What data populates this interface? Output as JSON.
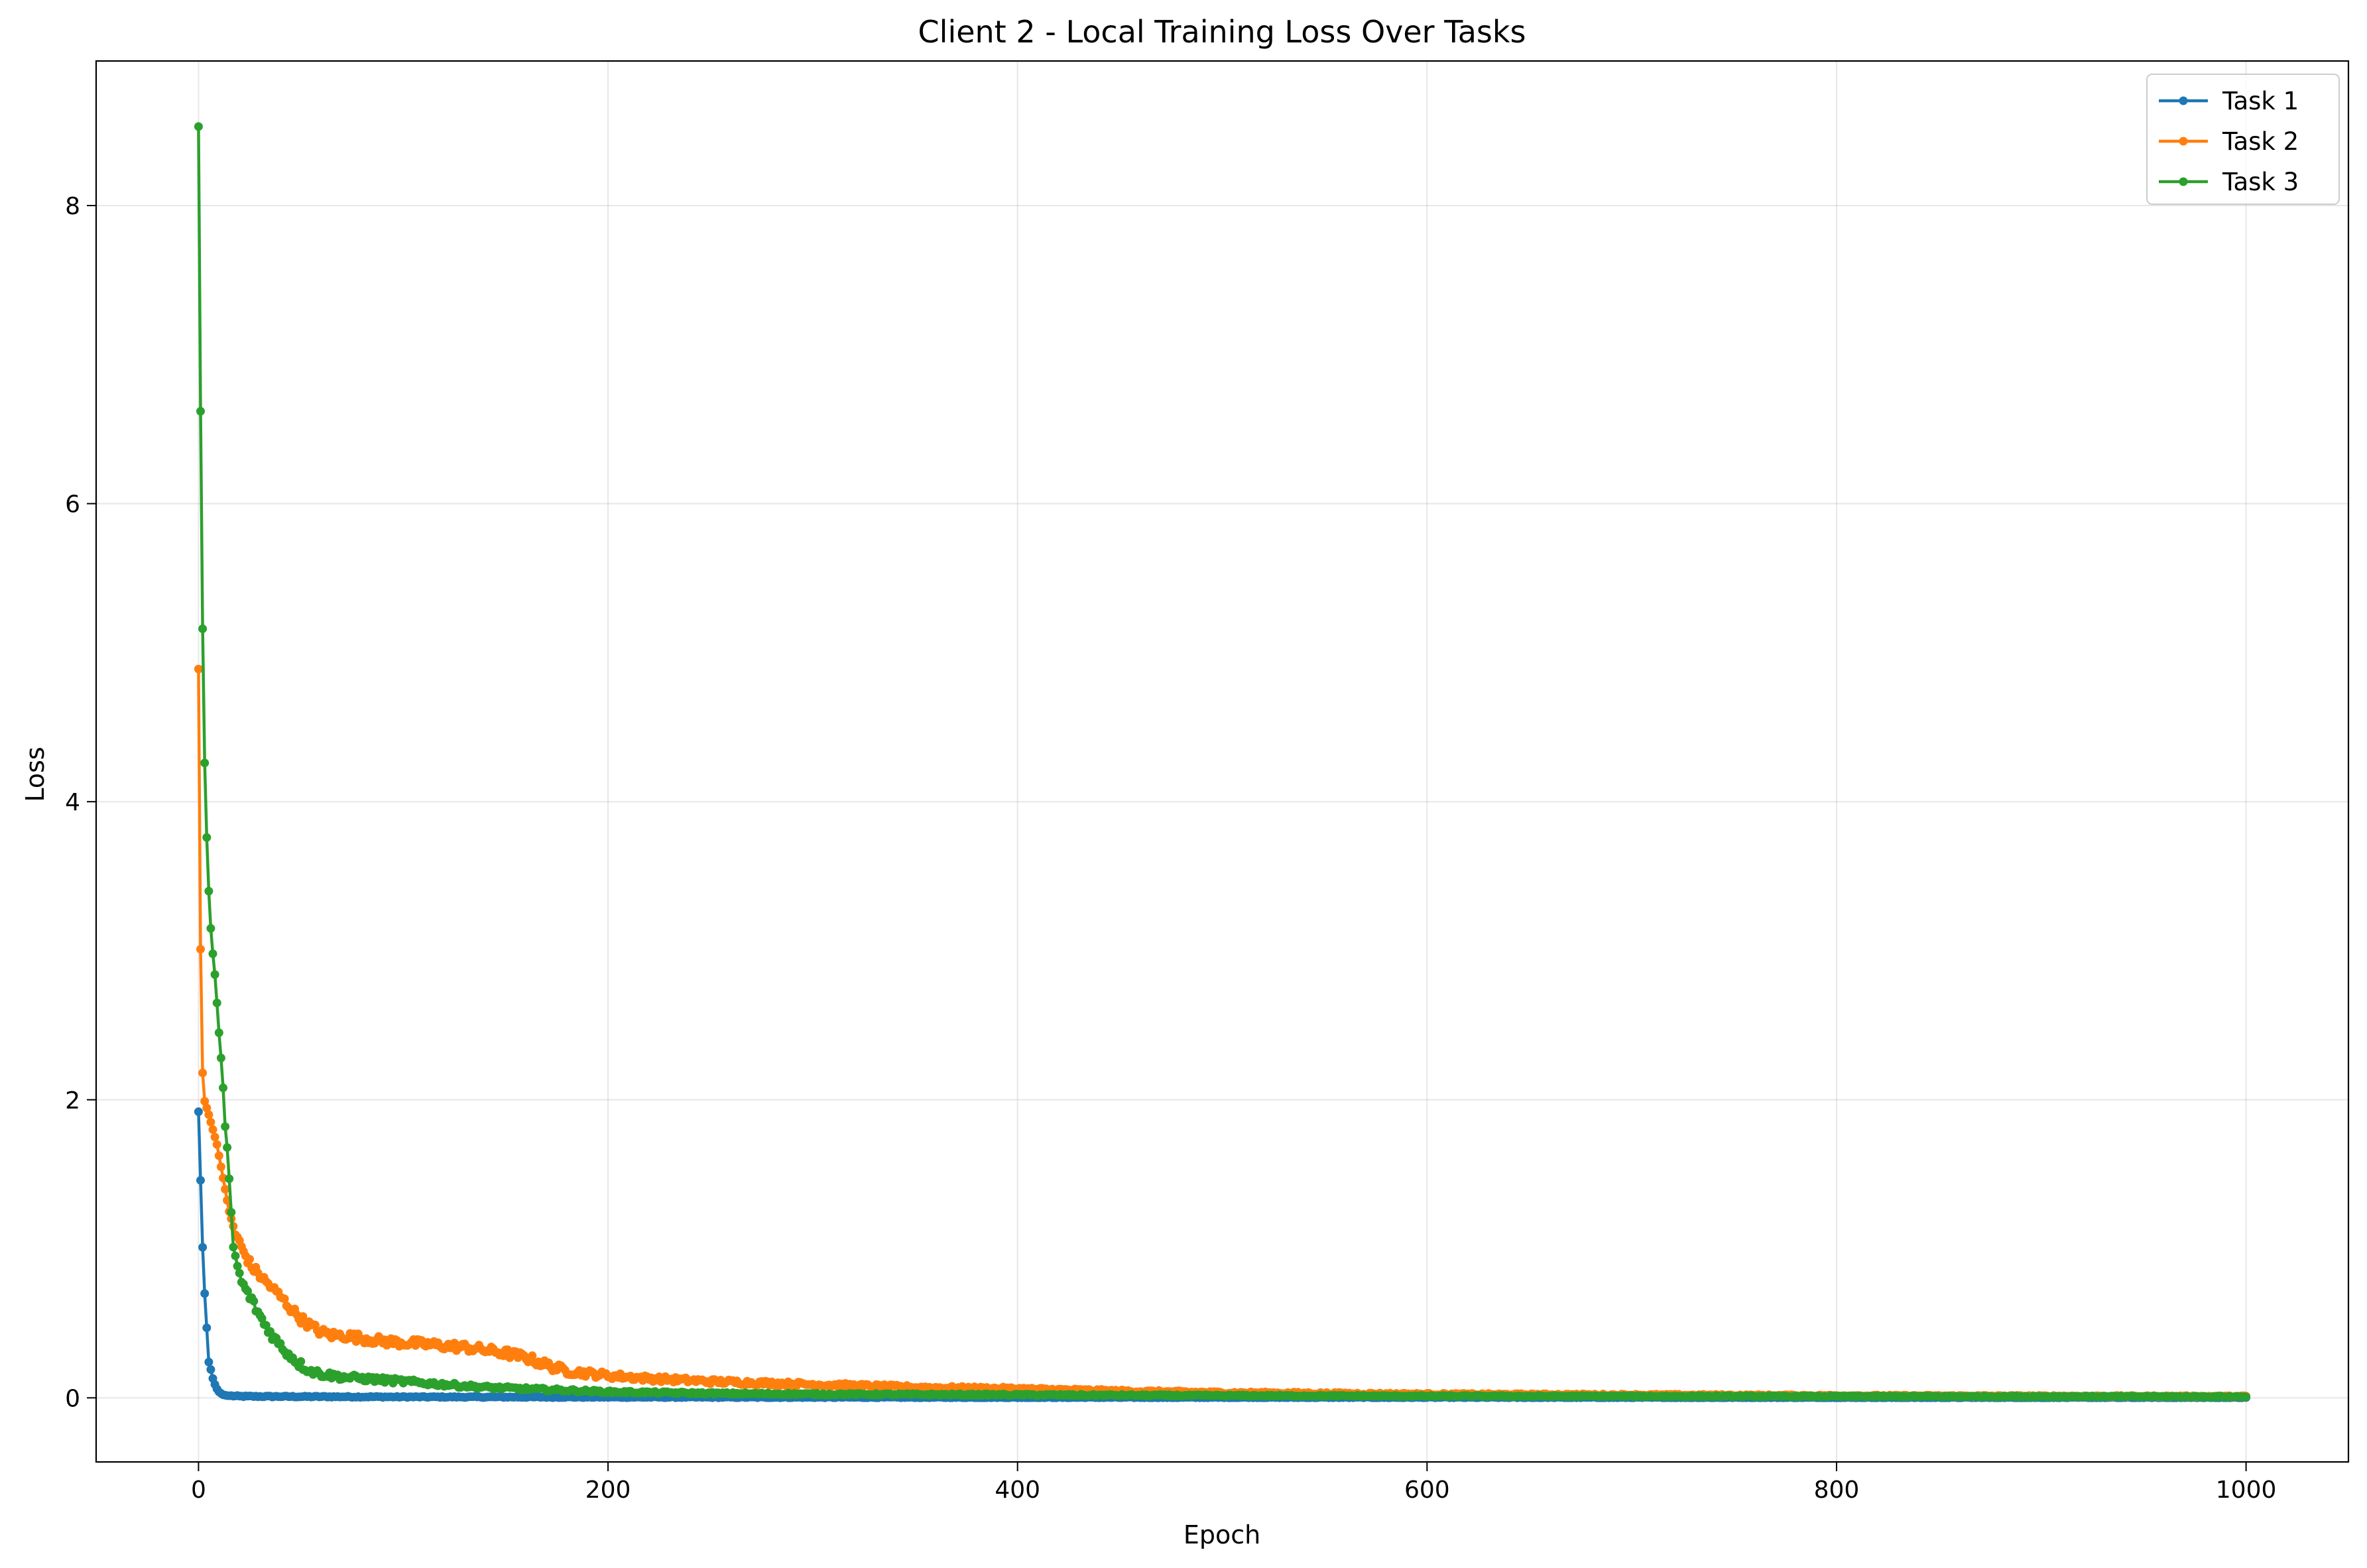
{
  "chart_data": {
    "type": "line",
    "title": "Client 2 - Local Training Loss Over Tasks",
    "xlabel": "Epoch",
    "ylabel": "Loss",
    "xlim": [
      -50,
      1050
    ],
    "ylim": [
      -0.43,
      8.97
    ],
    "xticks": [
      0,
      200,
      400,
      600,
      800,
      1000
    ],
    "yticks": [
      0,
      2,
      4,
      6,
      8
    ],
    "grid": true,
    "legend_position": "top-right",
    "markers": true,
    "series": [
      {
        "name": "Task 1",
        "color": "#1f77b4",
        "points": [
          [
            0,
            1.92
          ],
          [
            1,
            1.46
          ],
          [
            2,
            1.01
          ],
          [
            3,
            0.7
          ],
          [
            4,
            0.47
          ],
          [
            5,
            0.24
          ],
          [
            6,
            0.19
          ],
          [
            7,
            0.13
          ],
          [
            8,
            0.09
          ],
          [
            9,
            0.06
          ],
          [
            10,
            0.04
          ],
          [
            12,
            0.02
          ],
          [
            14,
            0.015
          ],
          [
            20,
            0.01
          ],
          [
            50,
            0.008
          ],
          [
            100,
            0.006
          ],
          [
            150,
            0.005
          ],
          [
            200,
            0.004
          ],
          [
            300,
            0.003
          ],
          [
            400,
            0.002
          ],
          [
            600,
            0.002
          ],
          [
            800,
            0.001
          ],
          [
            1000,
            0.001
          ]
        ]
      },
      {
        "name": "Task 2",
        "color": "#ff7f0e",
        "points": [
          [
            0,
            4.89
          ],
          [
            1,
            3.01
          ],
          [
            2,
            2.18
          ],
          [
            3,
            1.99
          ],
          [
            5,
            1.9
          ],
          [
            7,
            1.8
          ],
          [
            9,
            1.7
          ],
          [
            11,
            1.55
          ],
          [
            13,
            1.4
          ],
          [
            15,
            1.25
          ],
          [
            18,
            1.1
          ],
          [
            22,
            0.98
          ],
          [
            26,
            0.88
          ],
          [
            30,
            0.82
          ],
          [
            35,
            0.75
          ],
          [
            40,
            0.68
          ],
          [
            45,
            0.6
          ],
          [
            50,
            0.53
          ],
          [
            55,
            0.48
          ],
          [
            60,
            0.44
          ],
          [
            65,
            0.42
          ],
          [
            70,
            0.42
          ],
          [
            80,
            0.4
          ],
          [
            90,
            0.38
          ],
          [
            100,
            0.37
          ],
          [
            110,
            0.36
          ],
          [
            120,
            0.35
          ],
          [
            130,
            0.34
          ],
          [
            140,
            0.32
          ],
          [
            150,
            0.3
          ],
          [
            160,
            0.27
          ],
          [
            170,
            0.22
          ],
          [
            180,
            0.18
          ],
          [
            200,
            0.15
          ],
          [
            220,
            0.13
          ],
          [
            250,
            0.11
          ],
          [
            300,
            0.09
          ],
          [
            350,
            0.07
          ],
          [
            400,
            0.06
          ],
          [
            450,
            0.045
          ],
          [
            500,
            0.035
          ],
          [
            600,
            0.025
          ],
          [
            700,
            0.02
          ],
          [
            800,
            0.015
          ],
          [
            900,
            0.012
          ],
          [
            1000,
            0.01
          ]
        ]
      },
      {
        "name": "Task 3",
        "color": "#2ca02c",
        "points": [
          [
            0,
            8.53
          ],
          [
            1,
            6.62
          ],
          [
            2,
            5.16
          ],
          [
            3,
            4.26
          ],
          [
            4,
            3.76
          ],
          [
            5,
            3.4
          ],
          [
            6,
            3.15
          ],
          [
            7,
            2.98
          ],
          [
            8,
            2.84
          ],
          [
            9,
            2.65
          ],
          [
            10,
            2.45
          ],
          [
            11,
            2.28
          ],
          [
            12,
            2.08
          ],
          [
            13,
            1.82
          ],
          [
            14,
            1.68
          ],
          [
            15,
            1.47
          ],
          [
            16,
            1.25
          ],
          [
            17,
            1.0
          ],
          [
            18,
            0.95
          ],
          [
            20,
            0.82
          ],
          [
            22,
            0.75
          ],
          [
            25,
            0.68
          ],
          [
            28,
            0.6
          ],
          [
            32,
            0.5
          ],
          [
            36,
            0.42
          ],
          [
            40,
            0.35
          ],
          [
            45,
            0.28
          ],
          [
            50,
            0.22
          ],
          [
            55,
            0.18
          ],
          [
            60,
            0.16
          ],
          [
            70,
            0.14
          ],
          [
            80,
            0.13
          ],
          [
            90,
            0.12
          ],
          [
            100,
            0.11
          ],
          [
            120,
            0.09
          ],
          [
            140,
            0.07
          ],
          [
            160,
            0.06
          ],
          [
            180,
            0.05
          ],
          [
            200,
            0.04
          ],
          [
            250,
            0.03
          ],
          [
            300,
            0.025
          ],
          [
            400,
            0.02
          ],
          [
            500,
            0.015
          ],
          [
            600,
            0.012
          ],
          [
            800,
            0.01
          ],
          [
            1000,
            0.008
          ]
        ]
      }
    ]
  }
}
